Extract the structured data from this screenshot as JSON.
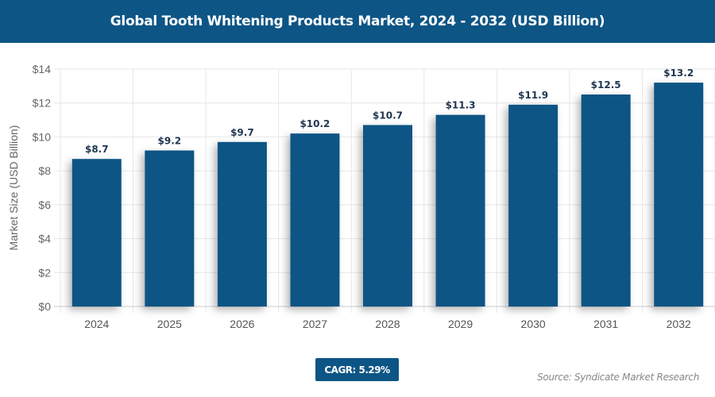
{
  "header": {
    "title": "Global Tooth Whitening Products Market, 2024 - 2032 (USD Billion)"
  },
  "footer": {
    "cagr": "CAGR: 5.29%",
    "source": "Source: Syndicate Market Research"
  },
  "chart_data": {
    "type": "bar",
    "title": "Global Tooth Whitening Products Market, 2024 - 2032 (USD Billion)",
    "xlabel": "",
    "ylabel": "Market Size (USD Billion)",
    "categories": [
      "2024",
      "2025",
      "2026",
      "2027",
      "2028",
      "2029",
      "2030",
      "2031",
      "2032"
    ],
    "values": [
      8.7,
      9.2,
      9.7,
      10.2,
      10.7,
      11.3,
      11.9,
      12.5,
      13.2
    ],
    "data_labels": [
      "$8.7",
      "$9.2",
      "$9.7",
      "$10.2",
      "$10.7",
      "$11.3",
      "$11.9",
      "$12.5",
      "$13.2"
    ],
    "yticks": [
      "$0",
      "$2",
      "$4",
      "$6",
      "$8",
      "$10",
      "$12",
      "$14"
    ],
    "ylim": [
      0,
      14
    ],
    "grid": true,
    "legend": "none",
    "bar_color": "#0d5585"
  }
}
